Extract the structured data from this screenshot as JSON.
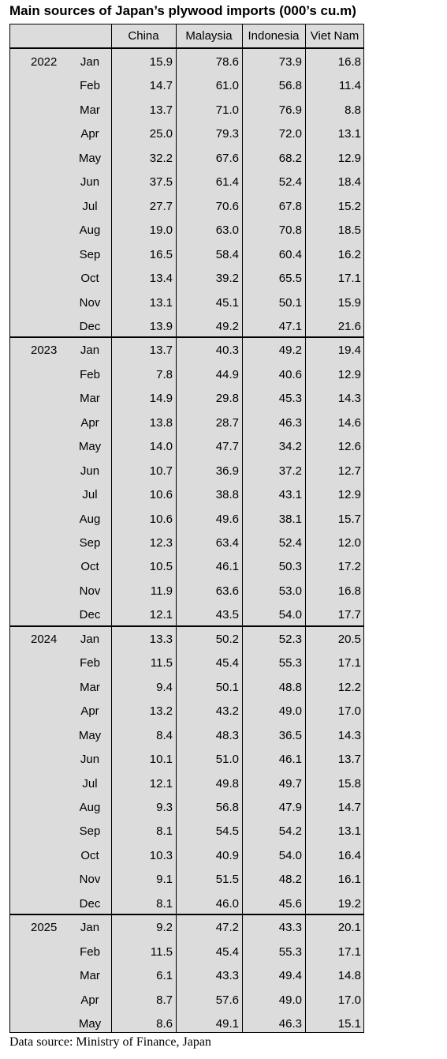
{
  "title": "Main sources of Japan’s plywood imports (000’s cu.m)",
  "header": [
    "China",
    "Malaysia",
    "Indonesia",
    "Viet Nam"
  ],
  "blocks": [
    {
      "year": "2022",
      "rows": [
        {
          "month": "Jan",
          "values": [
            "15.9",
            "78.6",
            "73.9",
            "16.8"
          ]
        },
        {
          "month": "Feb",
          "values": [
            "14.7",
            "61.0",
            "56.8",
            "11.4"
          ]
        },
        {
          "month": "Mar",
          "values": [
            "13.7",
            "71.0",
            "76.9",
            "8.8"
          ]
        },
        {
          "month": "Apr",
          "values": [
            "25.0",
            "79.3",
            "72.0",
            "13.1"
          ]
        },
        {
          "month": "May",
          "values": [
            "32.2",
            "67.6",
            "68.2",
            "12.9"
          ]
        },
        {
          "month": "Jun",
          "values": [
            "37.5",
            "61.4",
            "52.4",
            "18.4"
          ]
        },
        {
          "month": "Jul",
          "values": [
            "27.7",
            "70.6",
            "67.8",
            "15.2"
          ]
        },
        {
          "month": "Aug",
          "values": [
            "19.0",
            "63.0",
            "70.8",
            "18.5"
          ]
        },
        {
          "month": "Sep",
          "values": [
            "16.5",
            "58.4",
            "60.4",
            "16.2"
          ]
        },
        {
          "month": "Oct",
          "values": [
            "13.4",
            "39.2",
            "65.5",
            "17.1"
          ]
        },
        {
          "month": "Nov",
          "values": [
            "13.1",
            "45.1",
            "50.1",
            "15.9"
          ]
        },
        {
          "month": "Dec",
          "values": [
            "13.9",
            "49.2",
            "47.1",
            "21.6"
          ]
        }
      ]
    },
    {
      "year": "2023",
      "rows": [
        {
          "month": "Jan",
          "values": [
            "13.7",
            "40.3",
            "49.2",
            "19.4"
          ]
        },
        {
          "month": "Feb",
          "values": [
            "7.8",
            "44.9",
            "40.6",
            "12.9"
          ]
        },
        {
          "month": "Mar",
          "values": [
            "14.9",
            "29.8",
            "45.3",
            "14.3"
          ]
        },
        {
          "month": "Apr",
          "values": [
            "13.8",
            "28.7",
            "46.3",
            "14.6"
          ]
        },
        {
          "month": "May",
          "values": [
            "14.0",
            "47.7",
            "34.2",
            "12.6"
          ]
        },
        {
          "month": "Jun",
          "values": [
            "10.7",
            "36.9",
            "37.2",
            "12.7"
          ]
        },
        {
          "month": "Jul",
          "values": [
            "10.6",
            "38.8",
            "43.1",
            "12.9"
          ]
        },
        {
          "month": "Aug",
          "values": [
            "10.6",
            "49.6",
            "38.1",
            "15.7"
          ]
        },
        {
          "month": "Sep",
          "values": [
            "12.3",
            "63.4",
            "52.4",
            "12.0"
          ]
        },
        {
          "month": "Oct",
          "values": [
            "10.5",
            "46.1",
            "50.3",
            "17.2"
          ]
        },
        {
          "month": "Nov",
          "values": [
            "11.9",
            "63.6",
            "53.0",
            "16.8"
          ]
        },
        {
          "month": "Dec",
          "values": [
            "12.1",
            "43.5",
            "54.0",
            "17.7"
          ]
        }
      ]
    },
    {
      "year": "2024",
      "rows": [
        {
          "month": "Jan",
          "values": [
            "13.3",
            "50.2",
            "52.3",
            "20.5"
          ]
        },
        {
          "month": "Feb",
          "values": [
            "11.5",
            "45.4",
            "55.3",
            "17.1"
          ]
        },
        {
          "month": "Mar",
          "values": [
            "9.4",
            "50.1",
            "48.8",
            "12.2"
          ]
        },
        {
          "month": "Apr",
          "values": [
            "13.2",
            "43.2",
            "49.0",
            "17.0"
          ]
        },
        {
          "month": "May",
          "values": [
            "8.4",
            "48.3",
            "36.5",
            "14.3"
          ]
        },
        {
          "month": "Jun",
          "values": [
            "10.1",
            "51.0",
            "46.1",
            "13.7"
          ]
        },
        {
          "month": "Jul",
          "values": [
            "12.1",
            "49.8",
            "49.7",
            "15.8"
          ]
        },
        {
          "month": "Aug",
          "values": [
            "9.3",
            "56.8",
            "47.9",
            "14.7"
          ]
        },
        {
          "month": "Sep",
          "values": [
            "8.1",
            "54.5",
            "54.2",
            "13.1"
          ]
        },
        {
          "month": "Oct",
          "values": [
            "10.3",
            "40.9",
            "54.0",
            "16.4"
          ]
        },
        {
          "month": "Nov",
          "values": [
            "9.1",
            "51.5",
            "48.2",
            "16.1"
          ]
        },
        {
          "month": "Dec",
          "values": [
            "8.1",
            "46.0",
            "45.6",
            "19.2"
          ]
        }
      ]
    },
    {
      "year": "2025",
      "rows": [
        {
          "month": "Jan",
          "values": [
            "9.2",
            "47.2",
            "43.3",
            "20.1"
          ]
        },
        {
          "month": "Feb",
          "values": [
            "11.5",
            "45.4",
            "55.3",
            "17.1"
          ]
        },
        {
          "month": "Mar",
          "values": [
            "6.1",
            "43.3",
            "49.4",
            "14.8"
          ]
        },
        {
          "month": "Apr",
          "values": [
            "8.7",
            "57.6",
            "49.0",
            "17.0"
          ]
        },
        {
          "month": "May",
          "values": [
            "8.6",
            "49.1",
            "46.3",
            "15.1"
          ]
        }
      ]
    }
  ],
  "source": "Data source: Ministry of Finance, Japan"
}
